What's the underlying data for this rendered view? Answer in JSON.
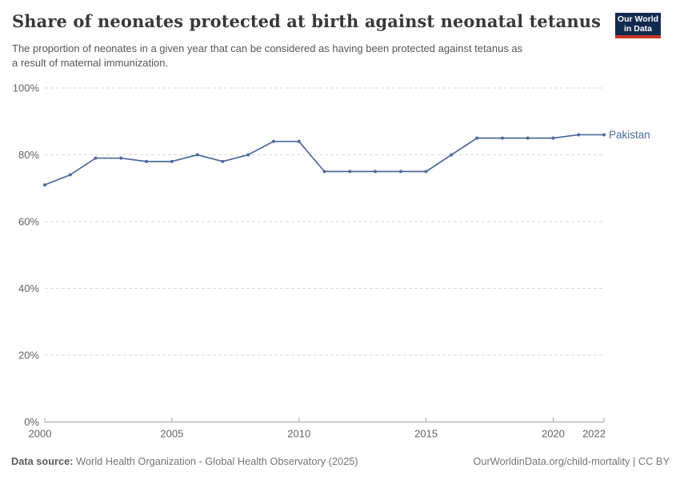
{
  "header": {
    "title": "Share of neonates protected at birth against neonatal tetanus",
    "subtitle_lines": [
      "The proportion of neonates in a given year that can be considered as having been protected against tetanus as",
      "a result of maternal immunization."
    ]
  },
  "logo": {
    "line1": "Our World",
    "line2": "in Data",
    "bg_color": "#122a4d",
    "accent_color": "#c7342c"
  },
  "footer": {
    "data_source_label": "Data source:",
    "data_source_value": "World Health Organization - Global Health Observatory (2025)",
    "link_text": "OurWorldinData.org/child-mortality | CC BY"
  },
  "chart_data": {
    "type": "line",
    "title": "Share of neonates protected at birth against neonatal tetanus",
    "x": [
      2000,
      2001,
      2002,
      2003,
      2004,
      2005,
      2006,
      2007,
      2008,
      2009,
      2010,
      2011,
      2012,
      2013,
      2014,
      2015,
      2016,
      2017,
      2018,
      2019,
      2020,
      2021,
      2022
    ],
    "series": [
      {
        "name": "Pakistan",
        "color": "#4c6a9c",
        "values": [
          71,
          74,
          79,
          79,
          78,
          78,
          80,
          78,
          80,
          84,
          84,
          75,
          75,
          75,
          75,
          75,
          80,
          85,
          85,
          85,
          85,
          86,
          86
        ]
      }
    ],
    "xlim": [
      2000,
      2022
    ],
    "ylim": [
      0,
      100
    ],
    "xticks": [
      2000,
      2005,
      2010,
      2015,
      2020,
      2022
    ],
    "yticks": [
      0,
      20,
      40,
      60,
      80,
      100
    ],
    "ytick_suffix": "%",
    "grid": "horizontal-dashed",
    "legend_position": "end-of-line"
  }
}
